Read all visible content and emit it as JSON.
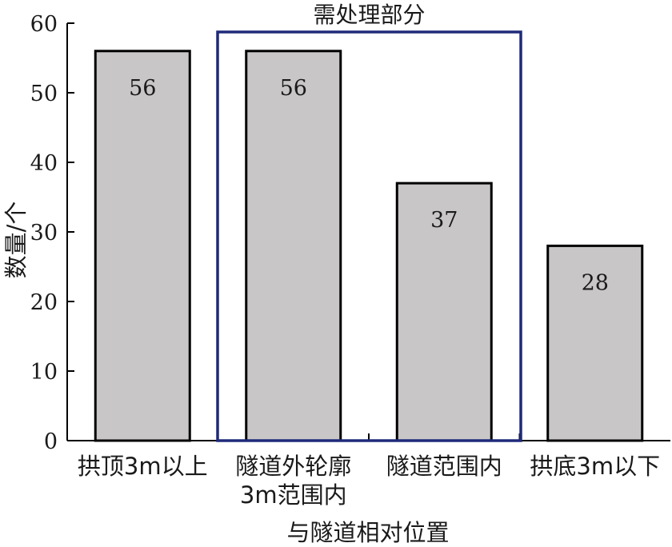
{
  "chart_data": {
    "type": "bar",
    "categories": [
      [
        "拱顶3m以上"
      ],
      [
        "隧道外轮廓",
        "3m范围内"
      ],
      [
        "隧道范围内"
      ],
      [
        "拱底3m以下"
      ]
    ],
    "values": [
      56,
      56,
      37,
      28
    ],
    "data_labels": [
      "56",
      "56",
      "37",
      "28"
    ],
    "xlabel": "与隧道相对位置",
    "ylabel": "数量/个",
    "ylim": [
      0,
      60
    ],
    "yticks": [
      0,
      10,
      20,
      30,
      40,
      50,
      60
    ],
    "grid": false,
    "legend": "none",
    "bar_color": "#c8c6c7",
    "bar_edge_color": "#000000",
    "annotation": {
      "label": "需处理部分",
      "spans_categories": [
        1,
        2
      ],
      "color": "#1f2a7a"
    }
  }
}
